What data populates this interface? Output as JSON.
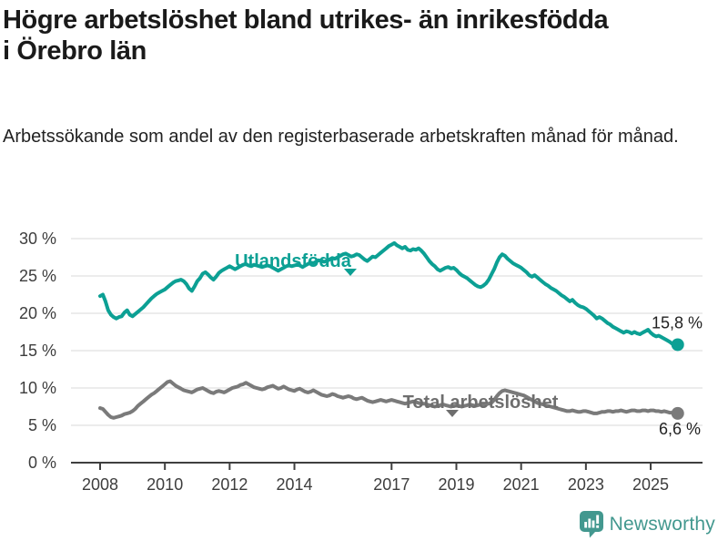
{
  "header": {
    "title": "Högre arbetslöshet bland utrikes- än inrikesfödda i Örebro län",
    "subtitle": "Arbetssökande som andel av den registerbaserade arbetskraften månad för månad."
  },
  "footer": {
    "brand": "Newsworthy",
    "logo_icon": "newsworthy-speech-bubble-barchart-icon",
    "brand_color": "#43988f"
  },
  "chart_data": {
    "type": "line",
    "title": "",
    "xlabel": "",
    "ylabel": "",
    "x_unit": "month",
    "x_start": "2008-01",
    "x_end": "2025-10",
    "x_tick_years": [
      2008,
      2010,
      2012,
      2014,
      2017,
      2019,
      2021,
      2023,
      2025
    ],
    "x_tick_labels": [
      "2008",
      "2010",
      "2012",
      "2014",
      "2017",
      "2019",
      "2021",
      "2023",
      "2025"
    ],
    "y_ticks": [
      0,
      5,
      10,
      15,
      20,
      25,
      30
    ],
    "y_tick_labels": [
      "0 %",
      "5 %",
      "10 %",
      "15 %",
      "20 %",
      "25 %",
      "30 %"
    ],
    "ylim": [
      0,
      30
    ],
    "grid": "horizontal",
    "legend_position": "inline-labels",
    "series": [
      {
        "name": "Utlandsfödda",
        "color": "#0ca094",
        "end_value": 15.8,
        "end_label": "15,8 %",
        "values": [
          22.3,
          22.5,
          21.6,
          20.4,
          19.8,
          19.5,
          19.3,
          19.5,
          19.6,
          20.1,
          20.4,
          19.8,
          19.6,
          19.9,
          20.2,
          20.5,
          20.8,
          21.2,
          21.6,
          22.0,
          22.3,
          22.6,
          22.8,
          23.0,
          23.2,
          23.5,
          23.8,
          24.1,
          24.3,
          24.4,
          24.5,
          24.3,
          23.9,
          23.3,
          23.0,
          23.6,
          24.3,
          24.7,
          25.3,
          25.5,
          25.2,
          24.8,
          24.5,
          24.9,
          25.4,
          25.7,
          25.9,
          26.1,
          26.3,
          26.1,
          25.9,
          26.1,
          26.3,
          26.5,
          26.6,
          26.4,
          26.3,
          26.5,
          26.4,
          26.3,
          26.2,
          26.3,
          26.4,
          26.3,
          26.1,
          25.9,
          25.7,
          25.9,
          26.1,
          26.3,
          26.4,
          26.3,
          26.4,
          26.5,
          26.4,
          26.2,
          26.4,
          26.6,
          26.8,
          26.7,
          26.9,
          27.1,
          27.0,
          26.9,
          27.0,
          27.2,
          27.4,
          27.3,
          27.5,
          27.7,
          27.9,
          28.0,
          27.8,
          27.6,
          27.7,
          27.9,
          27.8,
          27.5,
          27.2,
          27.0,
          27.3,
          27.6,
          27.5,
          27.8,
          28.1,
          28.4,
          28.7,
          29.0,
          29.2,
          29.4,
          29.1,
          28.9,
          28.7,
          28.9,
          28.5,
          28.4,
          28.6,
          28.5,
          28.7,
          28.4,
          28.0,
          27.5,
          27.0,
          26.6,
          26.3,
          25.9,
          25.7,
          25.9,
          26.1,
          26.2,
          26.0,
          26.1,
          25.8,
          25.4,
          25.1,
          24.9,
          24.7,
          24.4,
          24.1,
          23.8,
          23.6,
          23.5,
          23.7,
          24.0,
          24.5,
          25.2,
          25.9,
          26.8,
          27.5,
          27.9,
          27.7,
          27.3,
          27.0,
          26.7,
          26.5,
          26.3,
          26.1,
          25.8,
          25.5,
          25.1,
          24.9,
          25.1,
          24.8,
          24.5,
          24.2,
          23.9,
          23.7,
          23.4,
          23.2,
          23.0,
          22.7,
          22.4,
          22.2,
          21.9,
          21.6,
          21.8,
          21.4,
          21.1,
          20.9,
          20.8,
          20.6,
          20.3,
          20.0,
          19.7,
          19.3,
          19.5,
          19.3,
          19.0,
          18.7,
          18.5,
          18.2,
          18.0,
          17.8,
          17.6,
          17.4,
          17.6,
          17.5,
          17.3,
          17.5,
          17.3,
          17.2,
          17.4,
          17.6,
          17.8,
          17.4,
          17.1,
          16.9,
          17.0,
          16.8,
          16.6,
          16.4,
          16.2,
          15.9,
          15.8
        ]
      },
      {
        "name": "Total arbetslöshet",
        "color": "#7a7a7a",
        "end_value": 6.6,
        "end_label": "6,6 %",
        "values": [
          7.3,
          7.2,
          6.8,
          6.4,
          6.1,
          6.0,
          6.1,
          6.2,
          6.3,
          6.5,
          6.6,
          6.7,
          6.9,
          7.2,
          7.6,
          7.9,
          8.2,
          8.5,
          8.8,
          9.1,
          9.3,
          9.6,
          9.9,
          10.2,
          10.5,
          10.8,
          10.9,
          10.6,
          10.3,
          10.1,
          9.9,
          9.7,
          9.6,
          9.5,
          9.4,
          9.6,
          9.8,
          9.9,
          10.0,
          9.8,
          9.6,
          9.4,
          9.3,
          9.5,
          9.6,
          9.5,
          9.4,
          9.6,
          9.8,
          10.0,
          10.1,
          10.2,
          10.4,
          10.5,
          10.7,
          10.5,
          10.3,
          10.1,
          10.0,
          9.9,
          9.8,
          9.9,
          10.1,
          10.2,
          10.3,
          10.1,
          9.9,
          10.0,
          10.2,
          10.0,
          9.8,
          9.7,
          9.6,
          9.8,
          9.9,
          9.7,
          9.5,
          9.4,
          9.5,
          9.7,
          9.5,
          9.3,
          9.1,
          9.0,
          8.9,
          9.0,
          9.2,
          9.1,
          8.9,
          8.8,
          8.7,
          8.8,
          8.9,
          8.8,
          8.6,
          8.5,
          8.6,
          8.7,
          8.5,
          8.3,
          8.2,
          8.1,
          8.2,
          8.3,
          8.4,
          8.3,
          8.2,
          8.3,
          8.4,
          8.3,
          8.2,
          8.1,
          8.0,
          7.9,
          8.0,
          8.1,
          8.2,
          8.1,
          8.0,
          7.9,
          7.9,
          7.8,
          7.7,
          7.6,
          7.5,
          7.6,
          7.7,
          7.8,
          7.7,
          7.6,
          7.5,
          7.6,
          7.7,
          7.6,
          7.5,
          7.6,
          7.7,
          7.8,
          7.7,
          7.6,
          7.7,
          7.8,
          7.7,
          7.8,
          7.9,
          8.0,
          8.4,
          8.9,
          9.3,
          9.6,
          9.7,
          9.6,
          9.5,
          9.4,
          9.3,
          9.2,
          9.1,
          9.0,
          8.8,
          8.6,
          8.4,
          8.2,
          8.0,
          7.9,
          7.8,
          7.7,
          7.6,
          7.5,
          7.4,
          7.3,
          7.2,
          7.1,
          7.0,
          6.9,
          6.9,
          7.0,
          6.9,
          6.8,
          6.8,
          6.9,
          6.9,
          6.8,
          6.7,
          6.6,
          6.6,
          6.7,
          6.8,
          6.8,
          6.9,
          6.9,
          6.8,
          6.9,
          6.9,
          7.0,
          6.9,
          6.8,
          6.9,
          7.0,
          7.0,
          6.9,
          6.9,
          7.0,
          7.0,
          6.9,
          7.0,
          7.0,
          6.9,
          6.9,
          6.8,
          6.9,
          6.8,
          6.7,
          6.7,
          6.6
        ]
      }
    ],
    "colors": {
      "grid": "#d9d9d9",
      "axis": "#3f3f3f",
      "tick_text": "#3d3d3d",
      "end_label_text": "#222222",
      "series_label_utlandsfodda": "#0ca094",
      "series_label_total": "#6e6e6e"
    }
  }
}
